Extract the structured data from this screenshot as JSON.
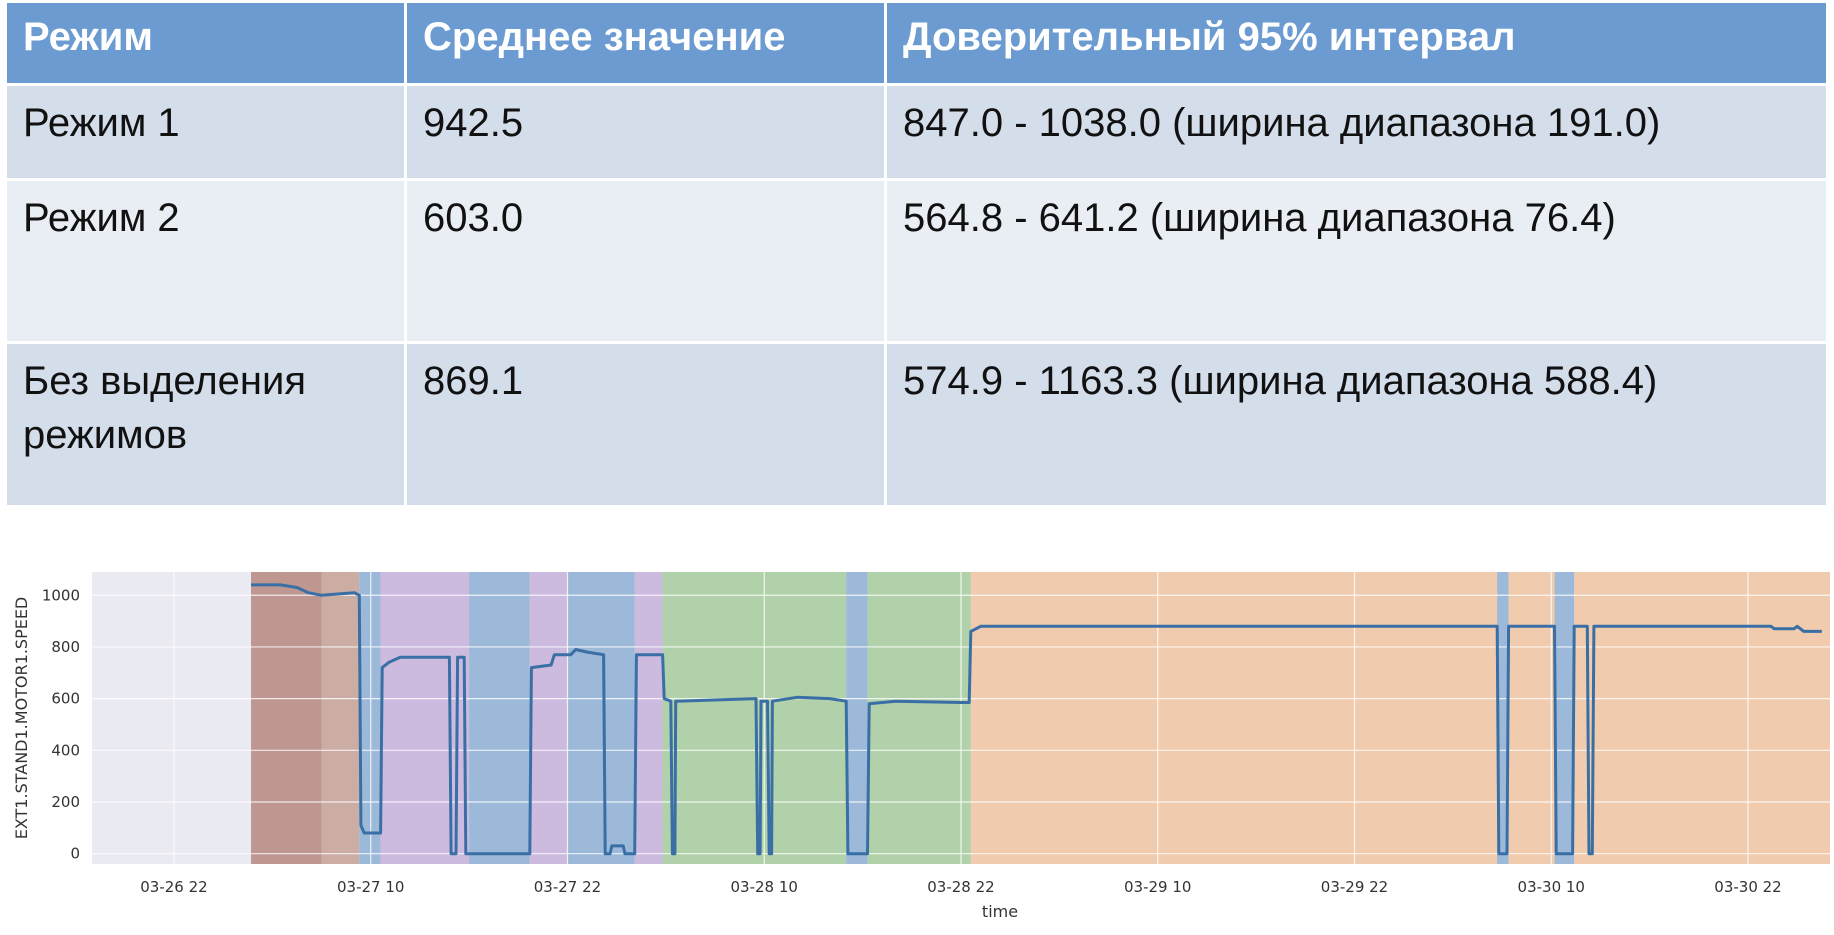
{
  "table": {
    "headers": [
      "Режим",
      "Среднее значение",
      "Доверительный 95% интервал"
    ],
    "rows": [
      [
        "Режим 1",
        "942.5",
        "847.0 - 1038.0 (ширина диапазона 191.0)"
      ],
      [
        "Режим 2",
        "603.0",
        "564.8 - 641.2 (ширина диапазона 76.4)"
      ],
      [
        "Без выделения режимов",
        "869.1",
        "574.9 - 1163.3 (ширина диапазона 588.4)"
      ]
    ],
    "colors": {
      "header_bg": "#6b9bd1",
      "row_odd_bg": "#d4ddea",
      "row_even_bg": "#e9edf4"
    }
  },
  "chart_data": {
    "type": "line",
    "xlabel": "time",
    "ylabel": "EXT1.STAND1.MOTOR1.SPEED",
    "x_tick_labels": [
      "03-26 22",
      "03-27 10",
      "03-27 22",
      "03-28 10",
      "03-28 22",
      "03-29 10",
      "03-29 22",
      "03-30 10",
      "03-30 22"
    ],
    "y_tick_labels": [
      "0",
      "200",
      "400",
      "600",
      "800",
      "1000"
    ],
    "x_unit": "hours since 03-26 22",
    "xlim": [
      -5,
      101
    ],
    "ylim": [
      -40,
      1090
    ],
    "grid": true,
    "series": [
      {
        "color": "#3a6fa5",
        "points": [
          [
            4.7,
            1040
          ],
          [
            6.5,
            1040
          ],
          [
            7.5,
            1030
          ],
          [
            8.2,
            1010
          ],
          [
            9.0,
            1000
          ],
          [
            11.0,
            1010
          ],
          [
            11.3,
            1000
          ],
          [
            11.4,
            110
          ],
          [
            11.6,
            80
          ],
          [
            12.6,
            80
          ],
          [
            12.7,
            720
          ],
          [
            13.1,
            740
          ],
          [
            13.8,
            760
          ],
          [
            16.8,
            760
          ],
          [
            16.9,
            0
          ],
          [
            17.2,
            0
          ],
          [
            17.3,
            760
          ],
          [
            17.7,
            760
          ],
          [
            17.8,
            0
          ],
          [
            21.7,
            0
          ],
          [
            21.8,
            720
          ],
          [
            23.0,
            730
          ],
          [
            23.2,
            770
          ],
          [
            24.2,
            770
          ],
          [
            24.5,
            790
          ],
          [
            25.2,
            780
          ],
          [
            26.2,
            770
          ],
          [
            26.3,
            0
          ],
          [
            26.6,
            0
          ],
          [
            26.7,
            30
          ],
          [
            27.4,
            30
          ],
          [
            27.5,
            0
          ],
          [
            28.1,
            0
          ],
          [
            28.2,
            770
          ],
          [
            29.8,
            770
          ],
          [
            29.9,
            600
          ],
          [
            30.3,
            590
          ],
          [
            30.4,
            0
          ],
          [
            30.55,
            0
          ],
          [
            30.6,
            590
          ],
          [
            35.5,
            600
          ],
          [
            35.6,
            0
          ],
          [
            35.75,
            0
          ],
          [
            35.8,
            590
          ],
          [
            36.2,
            590
          ],
          [
            36.3,
            0
          ],
          [
            36.45,
            0
          ],
          [
            36.5,
            590
          ],
          [
            38.0,
            605
          ],
          [
            40.0,
            600
          ],
          [
            41.0,
            590
          ],
          [
            41.1,
            0
          ],
          [
            42.3,
            0
          ],
          [
            42.4,
            580
          ],
          [
            44.0,
            590
          ],
          [
            48.0,
            585
          ],
          [
            48.5,
            585
          ],
          [
            48.6,
            860
          ],
          [
            49.2,
            880
          ],
          [
            80.7,
            880
          ],
          [
            80.8,
            0
          ],
          [
            81.3,
            0
          ],
          [
            81.4,
            880
          ],
          [
            84.2,
            880
          ],
          [
            84.3,
            0
          ],
          [
            85.3,
            0
          ],
          [
            85.4,
            880
          ],
          [
            86.2,
            880
          ],
          [
            86.3,
            0
          ],
          [
            86.5,
            0
          ],
          [
            86.6,
            880
          ],
          [
            97.4,
            880
          ],
          [
            97.6,
            870
          ],
          [
            98.8,
            870
          ],
          [
            99.0,
            880
          ],
          [
            99.4,
            860
          ],
          [
            100.5,
            860
          ]
        ]
      }
    ],
    "background_regions": [
      {
        "x": [
          4.7,
          9.0
        ],
        "color": "#b5887f"
      },
      {
        "x": [
          9.0,
          11.3
        ],
        "color": "#c5a296"
      },
      {
        "x": [
          11.3,
          12.6
        ],
        "color": "#8fb0d5"
      },
      {
        "x": [
          12.6,
          18.0
        ],
        "color": "#c7b2dc"
      },
      {
        "x": [
          18.0,
          21.7
        ],
        "color": "#8fb0d5"
      },
      {
        "x": [
          21.7,
          24.0
        ],
        "color": "#c7b2dc"
      },
      {
        "x": [
          24.0,
          28.1
        ],
        "color": "#8fb0d5"
      },
      {
        "x": [
          28.1,
          29.8
        ],
        "color": "#c7b2dc"
      },
      {
        "x": [
          29.8,
          41.0
        ],
        "color": "#a6cd9c"
      },
      {
        "x": [
          41.0,
          42.3
        ],
        "color": "#8fb0d5"
      },
      {
        "x": [
          42.3,
          48.6
        ],
        "color": "#a6cd9c"
      },
      {
        "x": [
          48.6,
          80.7
        ],
        "color": "#f2c6a2"
      },
      {
        "x": [
          80.7,
          81.4
        ],
        "color": "#8fb0d5"
      },
      {
        "x": [
          81.4,
          84.2
        ],
        "color": "#f2c6a2"
      },
      {
        "x": [
          84.2,
          85.4
        ],
        "color": "#8fb0d5"
      },
      {
        "x": [
          85.4,
          101.0
        ],
        "color": "#f2c6a2"
      }
    ]
  }
}
